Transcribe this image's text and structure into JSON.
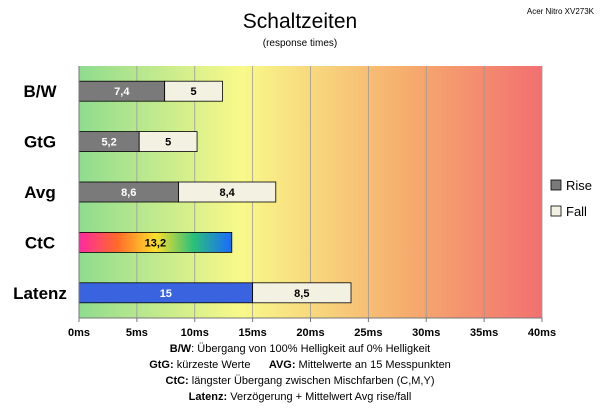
{
  "chart_data": {
    "type": "bar",
    "orientation": "horizontal",
    "stacked": true,
    "title": "Schaltzeiten",
    "subtitle": "(response times)",
    "corner_label": "Acer Nitro XV273K",
    "categories": [
      "B/W",
      "GtG",
      "Avg",
      "CtC",
      "Latenz"
    ],
    "series": [
      {
        "name": "Rise",
        "values": [
          7.4,
          5.2,
          8.6,
          13.2,
          15
        ],
        "labels": [
          "7,4",
          "5,2",
          "8,6",
          "13,2",
          "15"
        ],
        "color": "#7a7a7a"
      },
      {
        "name": "Fall",
        "values": [
          5,
          5,
          8.4,
          null,
          8.5
        ],
        "labels": [
          "5",
          "5",
          "8,4",
          "",
          "8,5"
        ],
        "color": "#f3f1e1"
      }
    ],
    "special_colors": {
      "CtC": "rainbow",
      "Latenz": "#3a63e0"
    },
    "xlim": [
      0,
      40
    ],
    "xticks": [
      0,
      5,
      10,
      15,
      20,
      25,
      30,
      35,
      40
    ],
    "xtick_labels": [
      "0ms",
      "5ms",
      "10ms",
      "15ms",
      "20ms",
      "25ms",
      "30ms",
      "35ms",
      "40ms"
    ],
    "grid": true,
    "legend_position": "right",
    "background_gradient": [
      "#8fdc8f",
      "#f9f98a",
      "#f6a868",
      "#f27070"
    ]
  },
  "footer": [
    {
      "key": "B/W",
      "text": ":  Übergang von 100% Helligkeit auf 0% Helligkeit"
    },
    {
      "key": "GtG:",
      "text": " kürzeste  Werte",
      "key2": "AVG:",
      "text2": " Mittelwerte  an 15 Messpunkten"
    },
    {
      "key": "CtC:",
      "text": " längster Übergang  zwischen Mischfarben (C,M,Y)"
    },
    {
      "key": "Latenz:",
      "text": " Verzögerung  + Mittelwert Avg rise/fall"
    }
  ]
}
